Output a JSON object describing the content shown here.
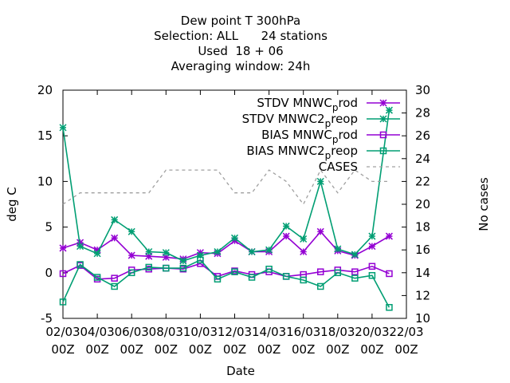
{
  "chart_data": {
    "type": "line",
    "title_lines": [
      "Dew point T 300hPa",
      "Selection: ALL      24 stations",
      "Used  18 + 06",
      "Averaging window: 24h"
    ],
    "xlabel": "Date",
    "ylabel": "deg C",
    "y2label": "No cases",
    "x_tick_labels": [
      [
        "02/03",
        "00Z"
      ],
      [
        "04/03",
        "00Z"
      ],
      [
        "06/03",
        "00Z"
      ],
      [
        "08/03",
        "00Z"
      ],
      [
        "10/03",
        "00Z"
      ],
      [
        "12/03",
        "00Z"
      ],
      [
        "14/03",
        "00Z"
      ],
      [
        "16/03",
        "00Z"
      ],
      [
        "18/03",
        "00Z"
      ],
      [
        "20/03",
        "00Z"
      ],
      [
        "22/03",
        "00Z"
      ]
    ],
    "xlim": [
      0,
      20
    ],
    "ylim": [
      -5,
      20
    ],
    "y_ticks": [
      -5,
      0,
      5,
      10,
      15,
      20
    ],
    "y2lim": [
      10,
      30
    ],
    "y2_ticks": [
      10,
      12,
      14,
      16,
      18,
      20,
      22,
      24,
      26,
      28,
      30
    ],
    "legend_position": "top-right",
    "x": [
      0,
      1,
      2,
      3,
      4,
      5,
      6,
      7,
      8,
      9,
      10,
      11,
      12,
      13,
      14,
      15,
      16,
      17,
      18,
      19
    ],
    "series": [
      {
        "name": "STDV MNWC_prod",
        "color": "#9400d3",
        "marker": "star",
        "axis": "y1",
        "values": [
          2.7,
          3.3,
          2.5,
          3.8,
          1.9,
          1.8,
          1.7,
          1.5,
          2.2,
          2.1,
          3.5,
          2.3,
          2.3,
          4.0,
          2.3,
          4.5,
          2.4,
          1.9,
          2.9,
          4.0
        ]
      },
      {
        "name": "STDV MNWC2_preop",
        "color": "#009e73",
        "marker": "star",
        "axis": "y1",
        "values": [
          15.9,
          2.9,
          2.1,
          5.8,
          4.5,
          2.3,
          2.2,
          1.3,
          1.9,
          2.3,
          3.8,
          2.3,
          2.5,
          5.1,
          3.7,
          10.0,
          2.6,
          2.0,
          4.0,
          17.8
        ]
      },
      {
        "name": "BIAS MNWC_prod",
        "color": "#9400d3",
        "marker": "square",
        "axis": "y1",
        "values": [
          -0.1,
          0.8,
          -0.7,
          -0.6,
          0.3,
          0.4,
          0.5,
          0.4,
          1.0,
          -0.4,
          0.2,
          -0.2,
          0.1,
          -0.4,
          -0.2,
          0.1,
          0.3,
          0.1,
          0.7,
          -0.1
        ]
      },
      {
        "name": "BIAS MNWC2_preop",
        "color": "#009e73",
        "marker": "square",
        "axis": "y1",
        "values": [
          -3.2,
          0.9,
          -0.5,
          -1.5,
          0.0,
          0.6,
          0.5,
          0.5,
          1.4,
          -0.7,
          0.1,
          -0.5,
          0.4,
          -0.4,
          -0.8,
          -1.5,
          0.0,
          -0.6,
          -0.3,
          -3.8
        ]
      },
      {
        "name": "CASES",
        "color": "#a0a0a0",
        "marker": "none",
        "dashed": true,
        "axis": "y2",
        "values": [
          20.0,
          21.0,
          21.0,
          21.0,
          21.0,
          21.0,
          23.0,
          23.0,
          23.0,
          23.0,
          21.0,
          21.0,
          23.0,
          22.0,
          20.0,
          23.0,
          21.0,
          23.0,
          22.0,
          22.0
        ]
      }
    ]
  }
}
